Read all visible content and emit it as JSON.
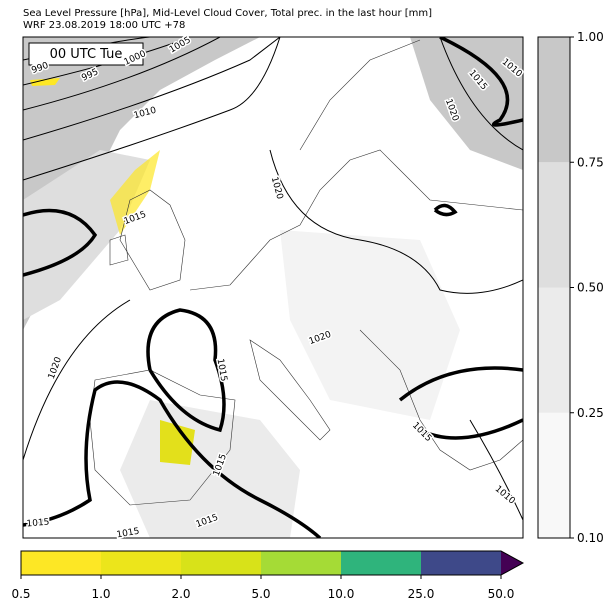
{
  "header": {
    "title": "Sea Level Pressure [hPa], Mid-Level Cloud Cover, Total prec. in the last hour [mm]",
    "subtitle": "WRF 23.08.2019 18:00 UTC +78"
  },
  "map": {
    "time_label": "00 UTC Tue",
    "contour_labels": [
      "990",
      "995",
      "1000",
      "1005",
      "1010",
      "1015",
      "1020",
      "1015",
      "1020",
      "1015",
      "1015",
      "1015",
      "1015",
      "1020",
      "1020",
      "1015",
      "1010",
      "1015",
      "1010"
    ]
  },
  "cloud_colorbar": {
    "ticks": [
      "0.10",
      "0.25",
      "0.50",
      "0.75",
      "1.00"
    ],
    "colors": [
      "#f8f8f8",
      "#ebebeb",
      "#dedede",
      "#c8c8c8"
    ]
  },
  "precip_colorbar": {
    "ticks": [
      "0.5",
      "1.0",
      "2.0",
      "5.0",
      "10.0",
      "25.0",
      "50.0"
    ],
    "colors": [
      "#fde725",
      "#ece51b",
      "#d8e219",
      "#a5db36",
      "#2fb47c",
      "#3e4989"
    ],
    "over_color": "#440154"
  }
}
